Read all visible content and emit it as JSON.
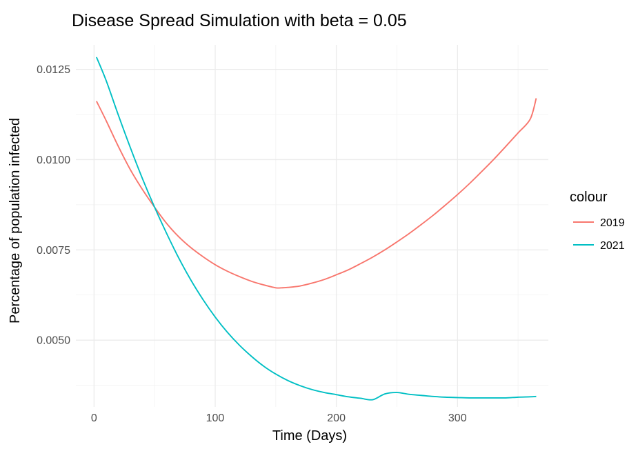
{
  "chart_data": {
    "type": "line",
    "title": "Disease Spread Simulation with beta = 0.05",
    "xlabel": "Time (Days)",
    "ylabel": "Percentage of population infected",
    "xlim": [
      -15,
      375
    ],
    "ylim": [
      0.00315,
      0.01318
    ],
    "x_ticks": [
      0,
      100,
      200,
      300
    ],
    "x_tick_labels": [
      "0",
      "100",
      "200",
      "300"
    ],
    "y_ticks": [
      0.005,
      0.0075,
      0.01,
      0.0125
    ],
    "y_tick_labels": [
      "0.0050",
      "0.0075",
      "0.0100",
      "0.0125"
    ],
    "grid": true,
    "legend": {
      "title": "colour",
      "position": "right"
    },
    "series": [
      {
        "name": "2019",
        "color": "#f8766d",
        "x": [
          2,
          10,
          20,
          30,
          40,
          50,
          60,
          70,
          80,
          90,
          100,
          110,
          120,
          130,
          140,
          150,
          155,
          160,
          170,
          180,
          190,
          200,
          210,
          220,
          230,
          240,
          250,
          260,
          270,
          280,
          290,
          300,
          310,
          320,
          330,
          340,
          350,
          360,
          365
        ],
        "y": [
          0.01162,
          0.01108,
          0.01037,
          0.00972,
          0.00917,
          0.00868,
          0.00823,
          0.00786,
          0.00756,
          0.00731,
          0.00709,
          0.00691,
          0.00676,
          0.00663,
          0.00653,
          0.00645,
          0.00645,
          0.00646,
          0.0065,
          0.00658,
          0.00668,
          0.00681,
          0.00695,
          0.00712,
          0.0073,
          0.0075,
          0.00772,
          0.00795,
          0.0082,
          0.00846,
          0.00874,
          0.00903,
          0.00934,
          0.00967,
          0.01001,
          0.01037,
          0.01074,
          0.01112,
          0.0117
        ]
      },
      {
        "name": "2021",
        "color": "#00bfc4",
        "x": [
          2,
          10,
          20,
          30,
          40,
          50,
          60,
          70,
          80,
          90,
          100,
          110,
          120,
          130,
          140,
          150,
          160,
          170,
          180,
          190,
          200,
          210,
          220,
          230,
          240,
          250,
          260,
          270,
          280,
          290,
          300,
          310,
          320,
          330,
          340,
          350,
          360,
          365
        ],
        "y": [
          0.01284,
          0.01219,
          0.01124,
          0.01033,
          0.00947,
          0.00868,
          0.00795,
          0.00727,
          0.00666,
          0.00612,
          0.00564,
          0.00522,
          0.00486,
          0.00455,
          0.00428,
          0.00406,
          0.00388,
          0.00374,
          0.00363,
          0.00355,
          0.00349,
          0.00343,
          0.00339,
          0.00335,
          0.00351,
          0.00355,
          0.0035,
          0.00347,
          0.00344,
          0.00342,
          0.00341,
          0.0034,
          0.0034,
          0.0034,
          0.0034,
          0.00342,
          0.00343,
          0.00344
        ]
      }
    ]
  }
}
